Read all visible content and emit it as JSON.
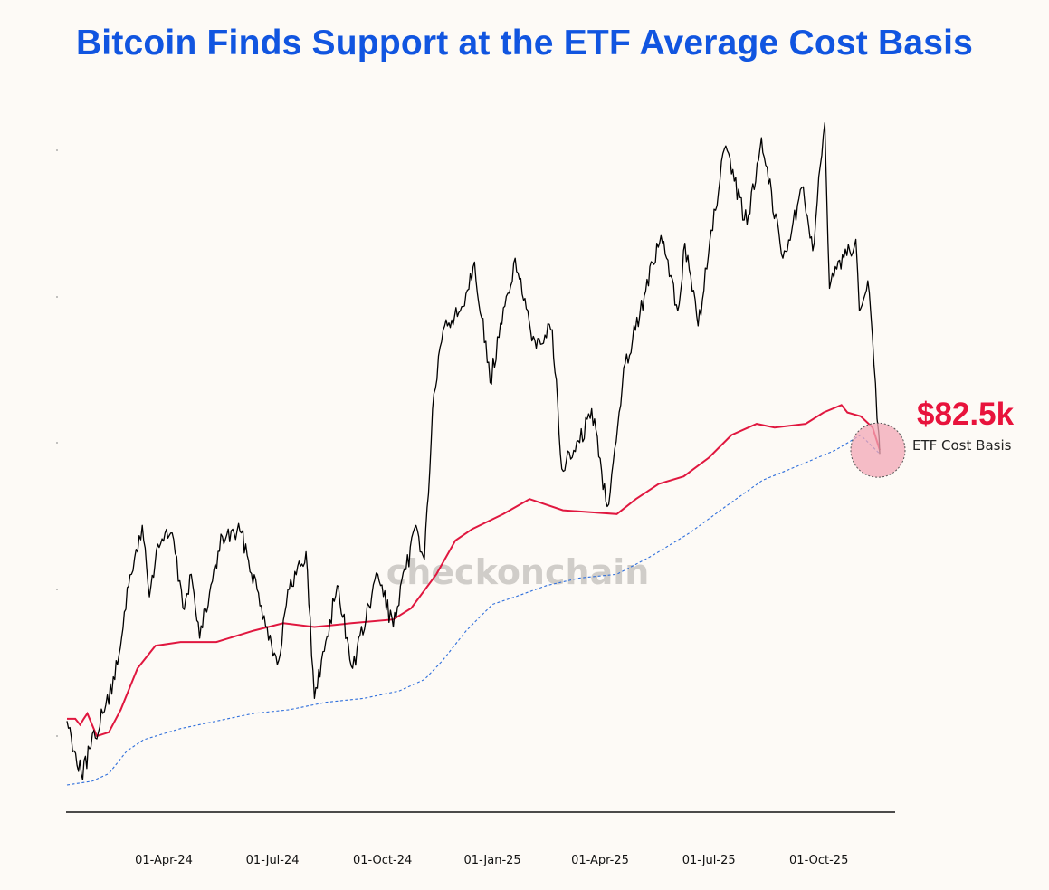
{
  "title": "Bitcoin Finds Support at the ETF Average Cost Basis",
  "watermark": "checkonchain",
  "callout": {
    "value": "$82.5k",
    "label": "ETF Cost Basis"
  },
  "colors": {
    "title": "#1155e0",
    "price": "#000000",
    "etf_cost_basis": "#e0173f",
    "lower_band": "#2f6fdc",
    "callout_value": "#e8133c",
    "highlight_fill": "#f2a7b6",
    "background": "#fdfaf6"
  },
  "chart_data": {
    "type": "line",
    "title": "Bitcoin Finds Support at the ETF Average Cost Basis",
    "xlabel": "",
    "ylabel": "",
    "x_ticks": [
      "01-Apr-24",
      "01-Jul-24",
      "01-Oct-24",
      "01-Jan-25",
      "01-Apr-25",
      "01-Jul-25",
      "01-Oct-25"
    ],
    "x_range": [
      "2024-01-11",
      "2025-11-21"
    ],
    "y_range": [
      38000,
      128000
    ],
    "grid": false,
    "series": [
      {
        "key": "price",
        "style": "solid",
        "points": [
          [
            "2024-01-11",
            46500
          ],
          [
            "2024-01-23",
            39500
          ],
          [
            "2024-01-31",
            43000
          ],
          [
            "2024-02-10",
            47500
          ],
          [
            "2024-02-20",
            52000
          ],
          [
            "2024-02-28",
            61000
          ],
          [
            "2024-03-05",
            66000
          ],
          [
            "2024-03-14",
            72500
          ],
          [
            "2024-03-20",
            63000
          ],
          [
            "2024-03-27",
            70000
          ],
          [
            "2024-04-08",
            71500
          ],
          [
            "2024-04-17",
            61500
          ],
          [
            "2024-04-24",
            66000
          ],
          [
            "2024-05-01",
            57500
          ],
          [
            "2024-05-20",
            71000
          ],
          [
            "2024-06-05",
            71500
          ],
          [
            "2024-06-24",
            60500
          ],
          [
            "2024-07-05",
            54000
          ],
          [
            "2024-07-15",
            64000
          ],
          [
            "2024-07-29",
            69000
          ],
          [
            "2024-08-05",
            49500
          ],
          [
            "2024-08-24",
            64500
          ],
          [
            "2024-09-06",
            53500
          ],
          [
            "2024-09-27",
            66000
          ],
          [
            "2024-10-10",
            59000
          ],
          [
            "2024-10-29",
            72500
          ],
          [
            "2024-11-05",
            68000
          ],
          [
            "2024-11-13",
            90000
          ],
          [
            "2024-11-22",
            99000
          ],
          [
            "2024-12-05",
            101000
          ],
          [
            "2024-12-17",
            107500
          ],
          [
            "2024-12-30",
            91500
          ],
          [
            "2025-01-20",
            108000
          ],
          [
            "2025-02-03",
            97000
          ],
          [
            "2025-02-20",
            98500
          ],
          [
            "2025-02-28",
            80000
          ],
          [
            "2025-03-15",
            83500
          ],
          [
            "2025-03-25",
            88000
          ],
          [
            "2025-04-07",
            75000
          ],
          [
            "2025-04-22",
            94000
          ],
          [
            "2025-05-08",
            103000
          ],
          [
            "2025-05-22",
            111000
          ],
          [
            "2025-06-05",
            101000
          ],
          [
            "2025-06-11",
            110000
          ],
          [
            "2025-06-22",
            99000
          ],
          [
            "2025-07-14",
            122500
          ],
          [
            "2025-08-02",
            112500
          ],
          [
            "2025-08-14",
            124000
          ],
          [
            "2025-09-01",
            108000
          ],
          [
            "2025-09-18",
            117500
          ],
          [
            "2025-09-26",
            109000
          ],
          [
            "2025-10-06",
            126000
          ],
          [
            "2025-10-10",
            104000
          ],
          [
            "2025-10-22",
            108000
          ],
          [
            "2025-11-01",
            110500
          ],
          [
            "2025-11-04",
            101000
          ],
          [
            "2025-11-11",
            105000
          ],
          [
            "2025-11-20",
            85000
          ],
          [
            "2025-11-21",
            82000
          ]
        ]
      },
      {
        "key": "etf_cost_basis",
        "style": "solid",
        "points": [
          [
            "2024-01-11",
            46800
          ],
          [
            "2024-01-18",
            46800
          ],
          [
            "2024-01-22",
            46000
          ],
          [
            "2024-01-25",
            46800
          ],
          [
            "2024-01-28",
            47500
          ],
          [
            "2024-02-05",
            44500
          ],
          [
            "2024-02-15",
            45000
          ],
          [
            "2024-02-25",
            48000
          ],
          [
            "2024-03-10",
            53500
          ],
          [
            "2024-03-25",
            56500
          ],
          [
            "2024-04-15",
            57000
          ],
          [
            "2024-05-15",
            57000
          ],
          [
            "2024-06-15",
            58500
          ],
          [
            "2024-07-10",
            59500
          ],
          [
            "2024-08-05",
            59000
          ],
          [
            "2024-09-05",
            59500
          ],
          [
            "2024-10-10",
            60000
          ],
          [
            "2024-10-25",
            61500
          ],
          [
            "2024-11-15",
            66000
          ],
          [
            "2024-12-01",
            70500
          ],
          [
            "2024-12-15",
            72000
          ],
          [
            "2025-01-10",
            74000
          ],
          [
            "2025-02-01",
            76000
          ],
          [
            "2025-03-01",
            74500
          ],
          [
            "2025-04-15",
            74000
          ],
          [
            "2025-05-01",
            76000
          ],
          [
            "2025-05-20",
            78000
          ],
          [
            "2025-06-10",
            79000
          ],
          [
            "2025-07-01",
            81500
          ],
          [
            "2025-07-20",
            84500
          ],
          [
            "2025-08-10",
            86000
          ],
          [
            "2025-08-25",
            85500
          ],
          [
            "2025-09-20",
            86000
          ],
          [
            "2025-10-05",
            87500
          ],
          [
            "2025-10-20",
            88500
          ],
          [
            "2025-10-25",
            87500
          ],
          [
            "2025-11-05",
            87000
          ],
          [
            "2025-11-15",
            85500
          ],
          [
            "2025-11-21",
            82500
          ]
        ]
      },
      {
        "key": "lower_band",
        "style": "dashed",
        "points": [
          [
            "2024-01-11",
            38000
          ],
          [
            "2024-02-01",
            38500
          ],
          [
            "2024-02-15",
            39500
          ],
          [
            "2024-03-01",
            42500
          ],
          [
            "2024-03-15",
            44000
          ],
          [
            "2024-04-15",
            45500
          ],
          [
            "2024-05-15",
            46500
          ],
          [
            "2024-06-15",
            47500
          ],
          [
            "2024-07-15",
            48000
          ],
          [
            "2024-08-15",
            49000
          ],
          [
            "2024-09-15",
            49500
          ],
          [
            "2024-10-15",
            50500
          ],
          [
            "2024-11-05",
            52000
          ],
          [
            "2024-11-20",
            54500
          ],
          [
            "2024-12-10",
            58500
          ],
          [
            "2025-01-01",
            62000
          ],
          [
            "2025-01-20",
            63000
          ],
          [
            "2025-02-15",
            64500
          ],
          [
            "2025-03-15",
            65500
          ],
          [
            "2025-04-15",
            66000
          ],
          [
            "2025-05-15",
            68500
          ],
          [
            "2025-06-15",
            71500
          ],
          [
            "2025-07-15",
            75000
          ],
          [
            "2025-08-15",
            78500
          ],
          [
            "2025-09-15",
            80500
          ],
          [
            "2025-10-15",
            82500
          ],
          [
            "2025-11-05",
            84500
          ],
          [
            "2025-11-21",
            82000
          ]
        ]
      }
    ]
  }
}
